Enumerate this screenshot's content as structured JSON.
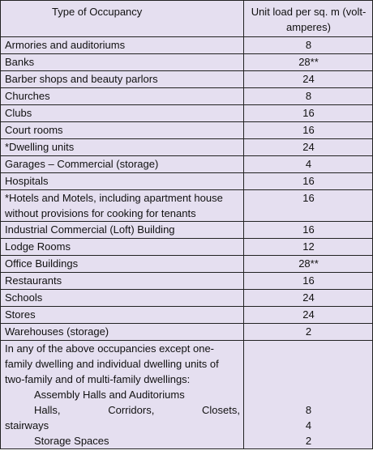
{
  "header": {
    "occupancy": "Type of Occupancy",
    "load": "Unit load per sq. m (volt-amperes)"
  },
  "rows": [
    {
      "type": "Armories and auditoriums",
      "load": "8"
    },
    {
      "type": "Banks",
      "load": "28**"
    },
    {
      "type": "Barber shops and beauty parlors",
      "load": "24"
    },
    {
      "type": "Churches",
      "load": "8"
    },
    {
      "type": "Clubs",
      "load": "16"
    },
    {
      "type": "Court rooms",
      "load": "16"
    },
    {
      "type": "*Dwelling units",
      "load": "24"
    },
    {
      "type": "Garages – Commercial (storage)",
      "load": "4"
    },
    {
      "type": "Hospitals",
      "load": "16"
    },
    {
      "type": "*Hotels and Motels, including apartment house without provisions for cooking for tenants",
      "load": "16"
    },
    {
      "type": "Industrial Commercial (Loft) Building",
      "load": "16"
    },
    {
      "type": "Lodge Rooms",
      "load": "12"
    },
    {
      "type": "Office Buildings",
      "load": "28**"
    },
    {
      "type": "Restaurants",
      "load": "16"
    },
    {
      "type": "Schools",
      "load": "24"
    },
    {
      "type": "Stores",
      "load": "24"
    },
    {
      "type": "Warehouses (storage)",
      "load": "2"
    }
  ],
  "last_row": {
    "intro": "In any of the above occupancies except one-family dwelling and individual dwelling units of two-family and of multi-family dwellings:",
    "sub1": "Assembly Halls and Auditoriums",
    "sub1_load": "8",
    "sub2_w1": "Halls,",
    "sub2_w2": "Corridors,",
    "sub2_w3": "Closets,",
    "sub2_cont": "stairways",
    "sub2_load": "4",
    "sub3": "Storage Spaces",
    "sub3_load": "2"
  }
}
